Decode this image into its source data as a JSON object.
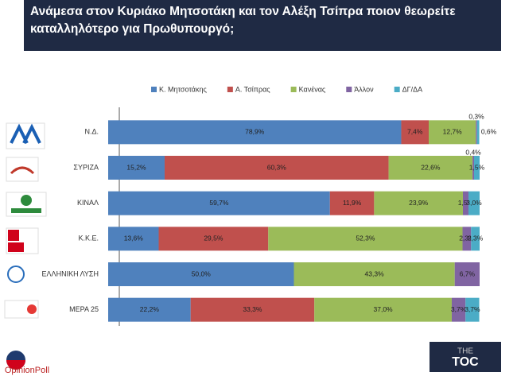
{
  "chart_data": {
    "type": "stacked-bar-horizontal",
    "title": "Ανάμεσα στον Κυριάκο Μητσοτάκη και τον Αλέξη Τσίπρα ποιον θεωρείτε καταλληλότερο για Πρωθυπουργό;",
    "categories": [
      "Ν.Δ.",
      "ΣΥΡΙΖΑ",
      "ΚΙΝΑΛ",
      "Κ.Κ.Ε.",
      "ΕΛΛΗΝΙΚΗ ΛΥΣΗ",
      "ΜΕΡΑ 25"
    ],
    "xlim": [
      0,
      100
    ],
    "legend": "top",
    "series": [
      {
        "name": "Κ. Μητσοτάκης",
        "color": "#4f81bd",
        "values": [
          78.9,
          15.2,
          59.7,
          13.6,
          50.0,
          22.2
        ],
        "value_labels": [
          "78,9%",
          "15,2%",
          "59,7%",
          "13,6%",
          "50,0%",
          "22,2%"
        ]
      },
      {
        "name": "Α. Τσίπρας",
        "color": "#c0504d",
        "values": [
          7.4,
          60.3,
          11.9,
          29.5,
          null,
          33.3
        ],
        "value_labels": [
          "7,4%",
          "60,3%",
          "11,9%",
          "29,5%",
          null,
          "33,3%"
        ]
      },
      {
        "name": "Κανένας",
        "color": "#9bbb59",
        "values": [
          12.7,
          22.6,
          23.9,
          52.3,
          43.3,
          37.0
        ],
        "value_labels": [
          "12,7%",
          "22,6%",
          "23,9%",
          "52,3%",
          "43,3%",
          "37,0%"
        ]
      },
      {
        "name": "Άλλον",
        "color": "#8064a2",
        "values": [
          0.3,
          0.4,
          1.5,
          2.3,
          6.7,
          3.7
        ],
        "value_labels": [
          "0,3%",
          "0,4%",
          "1,5%",
          "2,3%",
          "6,7%",
          "3,7%"
        ]
      },
      {
        "name": "ΔΓ/ΔΑ",
        "color": "#4bacc6",
        "values": [
          0.6,
          1.5,
          3.0,
          2.3,
          null,
          3.7
        ],
        "value_labels": [
          "0,6%",
          "1,5%",
          "3,0%",
          "2,3%",
          null,
          "3,7%"
        ]
      }
    ]
  },
  "logos": {
    "pollster": "OpinionPoll",
    "media_top": "THE",
    "media": "TOC"
  }
}
